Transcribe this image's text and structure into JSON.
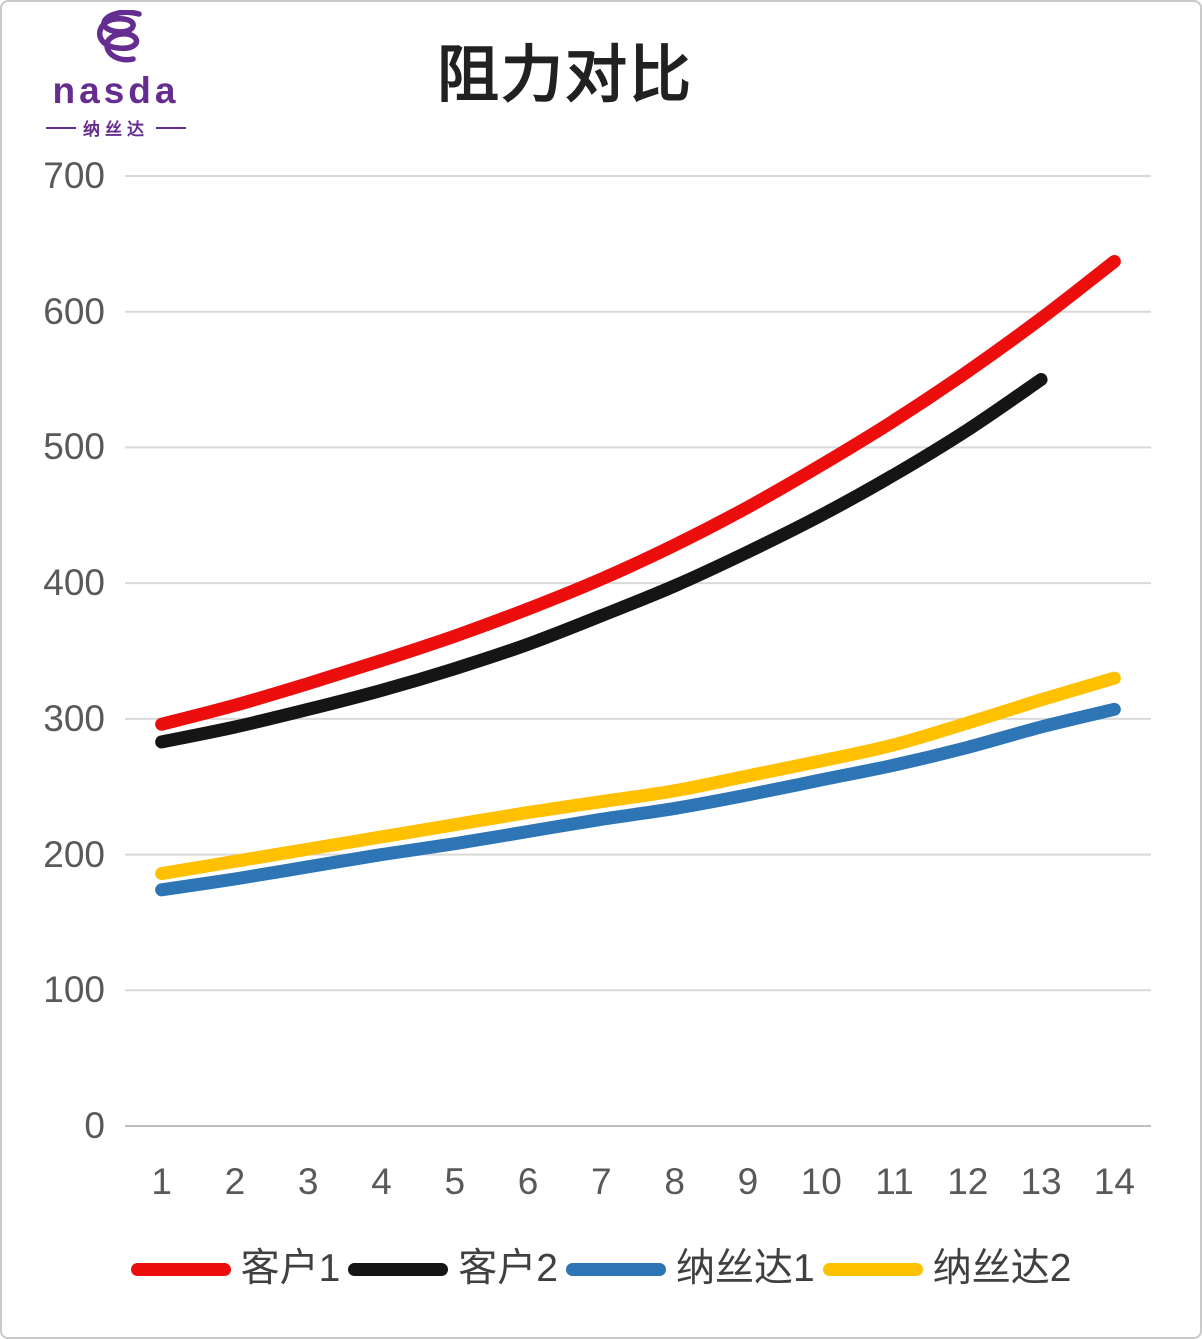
{
  "logo": {
    "brand": "nasda",
    "subtitle": "纳丝达",
    "color": "#662D91"
  },
  "chart_data": {
    "type": "line",
    "title": "阻力对比",
    "xlabel": "",
    "ylabel": "",
    "x_tick_labels": [
      "1",
      "2",
      "3",
      "4",
      "5",
      "6",
      "7",
      "8",
      "9",
      "10",
      "11",
      "12",
      "13",
      "14"
    ],
    "y_ticks": [
      0,
      100,
      200,
      300,
      400,
      500,
      600,
      700
    ],
    "ylim": [
      0,
      700
    ],
    "grid": true,
    "smooth": true,
    "legend_position": "bottom",
    "gridline_color": "#d9d9d9",
    "axis_line_color": "#bfbfbf",
    "tick_label_color": "#595959",
    "series": [
      {
        "name": "客户1",
        "color": "#ec0d0d",
        "values": [
          296,
          310,
          326,
          343,
          361,
          381,
          403,
          428,
          456,
          487,
          520,
          556,
          595,
          637
        ]
      },
      {
        "name": "客户2",
        "color": "#151515",
        "values": [
          283,
          294,
          307,
          321,
          337,
          355,
          376,
          398,
          423,
          450,
          480,
          513,
          550
        ]
      },
      {
        "name": "纳丝达1",
        "color": "#2e75b6",
        "values": [
          174,
          182,
          191,
          200,
          208,
          217,
          226,
          234,
          244,
          255,
          266,
          279,
          294,
          307
        ]
      },
      {
        "name": "纳丝达2",
        "color": "#ffc000",
        "values": [
          186,
          195,
          204,
          213,
          222,
          231,
          239,
          247,
          258,
          269,
          281,
          297,
          314,
          330
        ]
      }
    ]
  }
}
